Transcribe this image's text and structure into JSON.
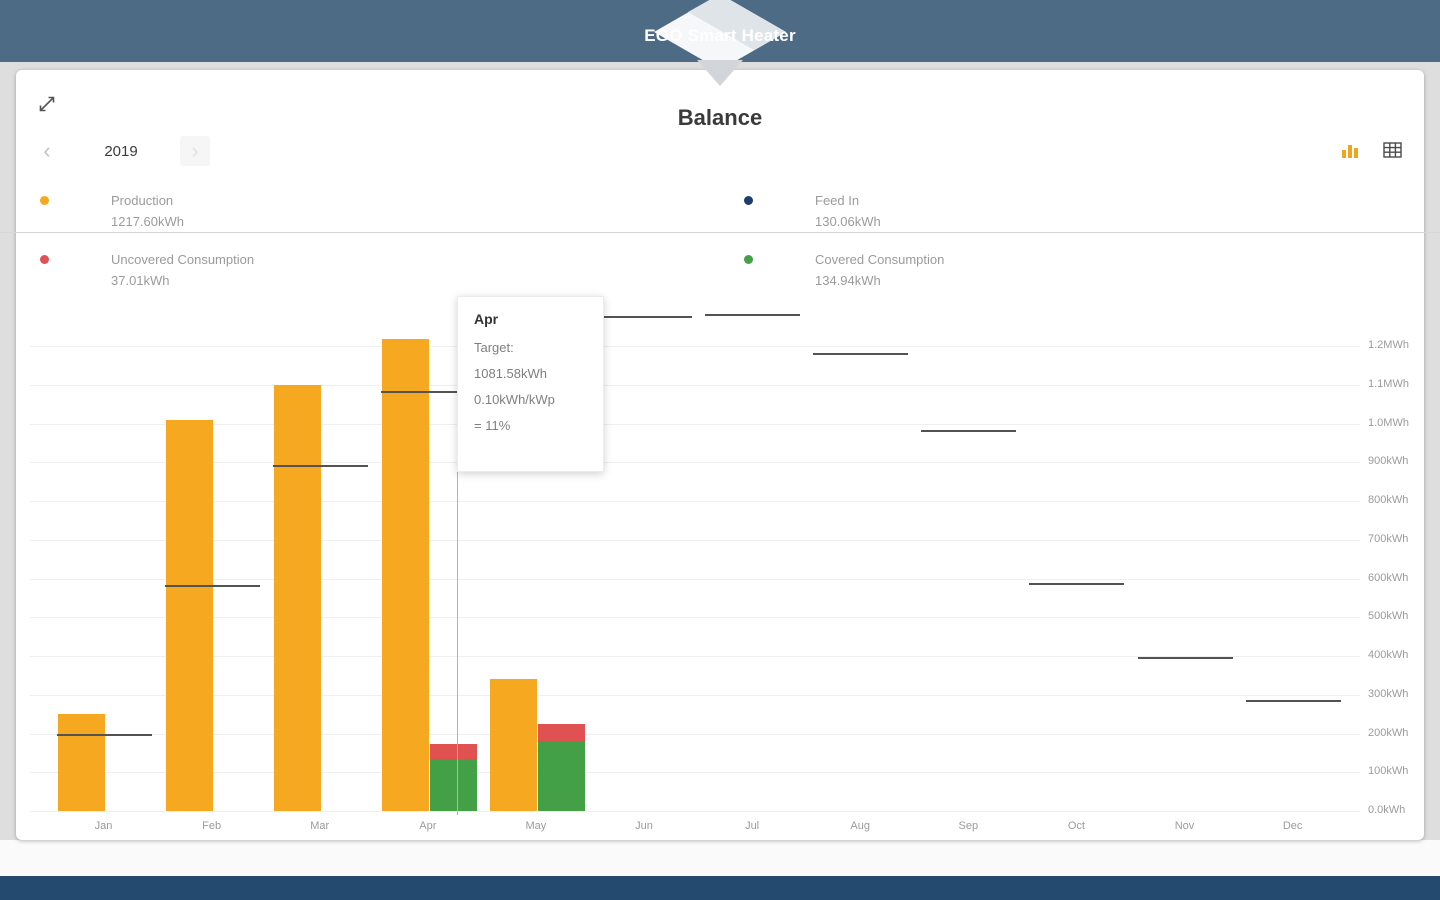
{
  "header": {
    "title": "EGO Smart Heater"
  },
  "panel": {
    "title": "Balance",
    "year": "2019",
    "nav_prev": "‹",
    "nav_next": "›",
    "legend": [
      {
        "label": "Production",
        "value": "1217.60kWh",
        "color": "#F6A821"
      },
      {
        "label": "Feed In",
        "value": "130.06kWh",
        "color": "#1B3E6F"
      },
      {
        "label": "Uncovered Consumption",
        "value": "37.01kWh",
        "color": "#E05252"
      },
      {
        "label": "Covered Consumption",
        "value": "134.94kWh",
        "color": "#43A047"
      }
    ]
  },
  "tooltip": {
    "month": "Apr",
    "lines": [
      "Target:",
      "1081.58kWh",
      "0.10kWh/kWp",
      "= 11%"
    ]
  },
  "chart_data": {
    "type": "bar",
    "title": "Balance",
    "year": "2019",
    "categories": [
      "Jan",
      "Feb",
      "Mar",
      "Apr",
      "May",
      "Jun",
      "Jul",
      "Aug",
      "Sep",
      "Oct",
      "Nov",
      "Dec"
    ],
    "series": [
      {
        "name": "Production",
        "color": "#F6A821",
        "values": [
          250,
          1010,
          1100,
          1217.6,
          340,
          null,
          null,
          null,
          null,
          null,
          null,
          null
        ]
      },
      {
        "name": "Covered Consumption",
        "color": "#43A047",
        "values": [
          null,
          null,
          null,
          134.94,
          180,
          null,
          null,
          null,
          null,
          null,
          null,
          null
        ]
      },
      {
        "name": "Uncovered Consumption",
        "color": "#E05252",
        "values": [
          null,
          null,
          null,
          37.01,
          45,
          null,
          null,
          null,
          null,
          null,
          null,
          null
        ]
      }
    ],
    "targets": {
      "name": "Target",
      "color": "#535353",
      "values": [
        195,
        580,
        890,
        1081.58,
        null,
        1275,
        1280,
        1180,
        980,
        585,
        395,
        285
      ]
    },
    "y_ticks": [
      {
        "v": 0,
        "label": "0.0kWh"
      },
      {
        "v": 100,
        "label": "100kWh"
      },
      {
        "v": 200,
        "label": "200kWh"
      },
      {
        "v": 300,
        "label": "300kWh"
      },
      {
        "v": 400,
        "label": "400kWh"
      },
      {
        "v": 500,
        "label": "500kWh"
      },
      {
        "v": 600,
        "label": "600kWh"
      },
      {
        "v": 700,
        "label": "700kWh"
      },
      {
        "v": 800,
        "label": "800kWh"
      },
      {
        "v": 900,
        "label": "900kWh"
      },
      {
        "v": 1000,
        "label": "1.0MWh"
      },
      {
        "v": 1100,
        "label": "1.1MWh"
      },
      {
        "v": 1200,
        "label": "1.2MWh"
      }
    ],
    "ylim": [
      0,
      1344
    ],
    "grid": true,
    "legend_position": "top",
    "hovered_category": "Apr"
  }
}
